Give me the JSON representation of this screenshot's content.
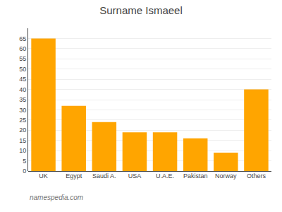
{
  "chart_data": {
    "type": "bar",
    "title": "Surname Ismaeel",
    "categories": [
      "UK",
      "Egypt",
      "Saudi A.",
      "USA",
      "U.A.E.",
      "Pakistan",
      "Norway",
      "Others"
    ],
    "values": [
      65,
      32,
      24,
      19,
      19,
      16,
      9,
      40
    ],
    "color": "#FFA500",
    "ylim": [
      0,
      70
    ],
    "yticks": [
      0,
      5,
      10,
      15,
      20,
      25,
      30,
      35,
      40,
      45,
      50,
      55,
      60,
      65
    ],
    "grid": true,
    "annotations": [
      "namespedia.com"
    ]
  }
}
